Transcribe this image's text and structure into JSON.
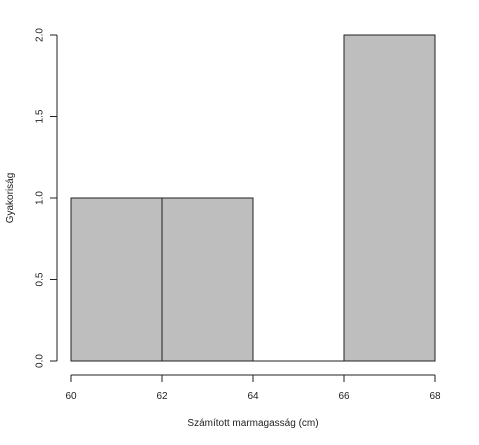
{
  "chart_data": {
    "type": "bar",
    "subtype": "histogram",
    "bins": [
      {
        "from": 60,
        "to": 62,
        "value": 1
      },
      {
        "from": 62,
        "to": 64,
        "value": 1
      },
      {
        "from": 64,
        "to": 66,
        "value": 0
      },
      {
        "from": 66,
        "to": 68,
        "value": 2
      }
    ],
    "xlabel": "Számított marmagasság (cm)",
    "ylabel": "Gyakoriság",
    "xlim": [
      60,
      68
    ],
    "ylim": [
      0,
      2
    ],
    "x_ticks": [
      "60",
      "62",
      "64",
      "66",
      "68"
    ],
    "y_ticks": [
      "0.0",
      "0.5",
      "1.0",
      "1.5",
      "2.0"
    ],
    "bar_color": "#bebebe",
    "grid": false,
    "legend": "none"
  }
}
